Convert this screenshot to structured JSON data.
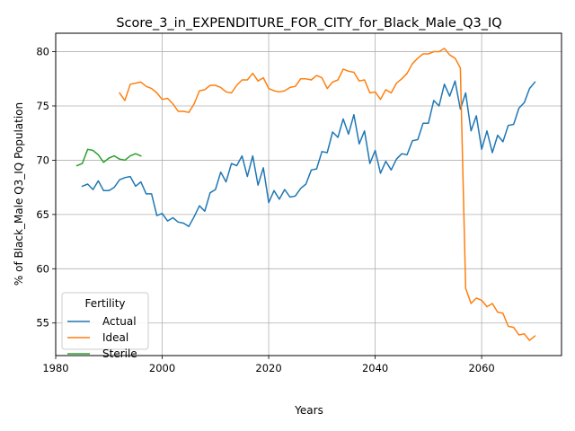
{
  "chart_data": {
    "type": "line",
    "title": "Score_3_in_EXPENDITURE_FOR_CITY_for_Black_Male_Q3_IQ",
    "xlabel": "Years",
    "ylabel": "% of Black_Male Q3_IQ Population",
    "xlim": [
      1980,
      2075
    ],
    "ylim": [
      52,
      81.7
    ],
    "xticks": [
      1980,
      2000,
      2020,
      2040,
      2060
    ],
    "yticks": [
      55,
      60,
      65,
      70,
      75,
      80
    ],
    "grid": true,
    "legend": {
      "title": "Fertility",
      "position": "lower-left"
    },
    "series": [
      {
        "name": "Actual",
        "color": "#1f77b4",
        "x": [
          1985,
          1986,
          1987,
          1988,
          1989,
          1990,
          1991,
          1992,
          1993,
          1994,
          1995,
          1996,
          1997,
          1998,
          1999,
          2000,
          2001,
          2002,
          2003,
          2004,
          2005,
          2006,
          2007,
          2008,
          2009,
          2010,
          2011,
          2012,
          2013,
          2014,
          2015,
          2016,
          2017,
          2018,
          2019,
          2020,
          2021,
          2022,
          2023,
          2024,
          2025,
          2026,
          2027,
          2028,
          2029,
          2030,
          2031,
          2032,
          2033,
          2034,
          2035,
          2036,
          2037,
          2038,
          2039,
          2040,
          2041,
          2042,
          2043,
          2044,
          2045,
          2046,
          2047,
          2048,
          2049,
          2050,
          2051,
          2052,
          2053,
          2054,
          2055,
          2056,
          2057,
          2058,
          2059,
          2060,
          2061,
          2062,
          2063,
          2064,
          2065,
          2066,
          2067,
          2068,
          2069,
          2070
        ],
        "values": [
          67.6,
          67.8,
          67.3,
          68.1,
          67.2,
          67.2,
          67.5,
          68.2,
          68.4,
          68.5,
          67.6,
          68.0,
          66.9,
          66.9,
          64.9,
          65.1,
          64.4,
          64.7,
          64.3,
          64.2,
          63.9,
          64.8,
          65.8,
          65.3,
          67.0,
          67.3,
          68.9,
          68.0,
          69.7,
          69.5,
          70.4,
          68.5,
          70.4,
          67.7,
          69.3,
          66.1,
          67.2,
          66.4,
          67.3,
          66.6,
          66.7,
          67.4,
          67.8,
          69.1,
          69.2,
          70.8,
          70.7,
          72.6,
          72.1,
          73.8,
          72.4,
          74.2,
          71.5,
          72.7,
          69.7,
          70.9,
          68.8,
          69.9,
          69.1,
          70.1,
          70.6,
          70.5,
          71.8,
          71.9,
          73.4,
          73.4,
          75.5,
          75.0,
          77.0,
          75.9,
          77.3,
          74.7,
          76.2,
          72.7,
          74.1,
          71.0,
          72.7,
          70.7,
          72.3,
          71.7,
          73.2,
          73.3,
          74.8,
          75.3,
          76.6,
          77.2
        ]
      },
      {
        "name": "Ideal",
        "color": "#ff7f0e",
        "x": [
          1992,
          1993,
          1994,
          1995,
          1996,
          1997,
          1998,
          1999,
          2000,
          2001,
          2002,
          2003,
          2004,
          2005,
          2006,
          2007,
          2008,
          2009,
          2010,
          2011,
          2012,
          2013,
          2014,
          2015,
          2016,
          2017,
          2018,
          2019,
          2020,
          2021,
          2022,
          2023,
          2024,
          2025,
          2026,
          2027,
          2028,
          2029,
          2030,
          2031,
          2032,
          2033,
          2034,
          2035,
          2036,
          2037,
          2038,
          2039,
          2040,
          2041,
          2042,
          2043,
          2044,
          2045,
          2046,
          2047,
          2048,
          2049,
          2050,
          2051,
          2052,
          2053,
          2054,
          2055,
          2056,
          2057,
          2058,
          2059,
          2060,
          2061,
          2062,
          2063,
          2064,
          2065,
          2066,
          2067,
          2068,
          2069,
          2070
        ],
        "values": [
          76.2,
          75.5,
          77.0,
          77.1,
          77.2,
          76.8,
          76.6,
          76.2,
          75.6,
          75.7,
          75.2,
          74.5,
          74.5,
          74.4,
          75.2,
          76.4,
          76.5,
          76.9,
          76.9,
          76.7,
          76.3,
          76.2,
          76.9,
          77.4,
          77.4,
          78.0,
          77.3,
          77.6,
          76.6,
          76.4,
          76.3,
          76.4,
          76.7,
          76.8,
          77.5,
          77.5,
          77.4,
          77.8,
          77.6,
          76.6,
          77.2,
          77.4,
          78.4,
          78.2,
          78.1,
          77.3,
          77.4,
          76.2,
          76.3,
          75.6,
          76.5,
          76.2,
          77.1,
          77.5,
          78.0,
          78.9,
          79.4,
          79.8,
          79.8,
          80.0,
          80.0,
          80.3,
          79.7,
          79.4,
          78.5,
          58.2,
          56.8,
          57.3,
          57.1,
          56.5,
          56.8,
          56.0,
          55.9,
          54.7,
          54.6,
          53.9,
          54.0,
          53.4,
          53.8
        ]
      },
      {
        "name": "Sterile",
        "color": "#2ca02c",
        "x": [
          1984,
          1985,
          1986,
          1987,
          1988,
          1989,
          1990,
          1991,
          1992,
          1993,
          1994,
          1995,
          1996
        ],
        "values": [
          69.5,
          69.7,
          71.0,
          70.9,
          70.5,
          69.8,
          70.2,
          70.4,
          70.1,
          70.0,
          70.4,
          70.6,
          70.4
        ]
      }
    ]
  }
}
